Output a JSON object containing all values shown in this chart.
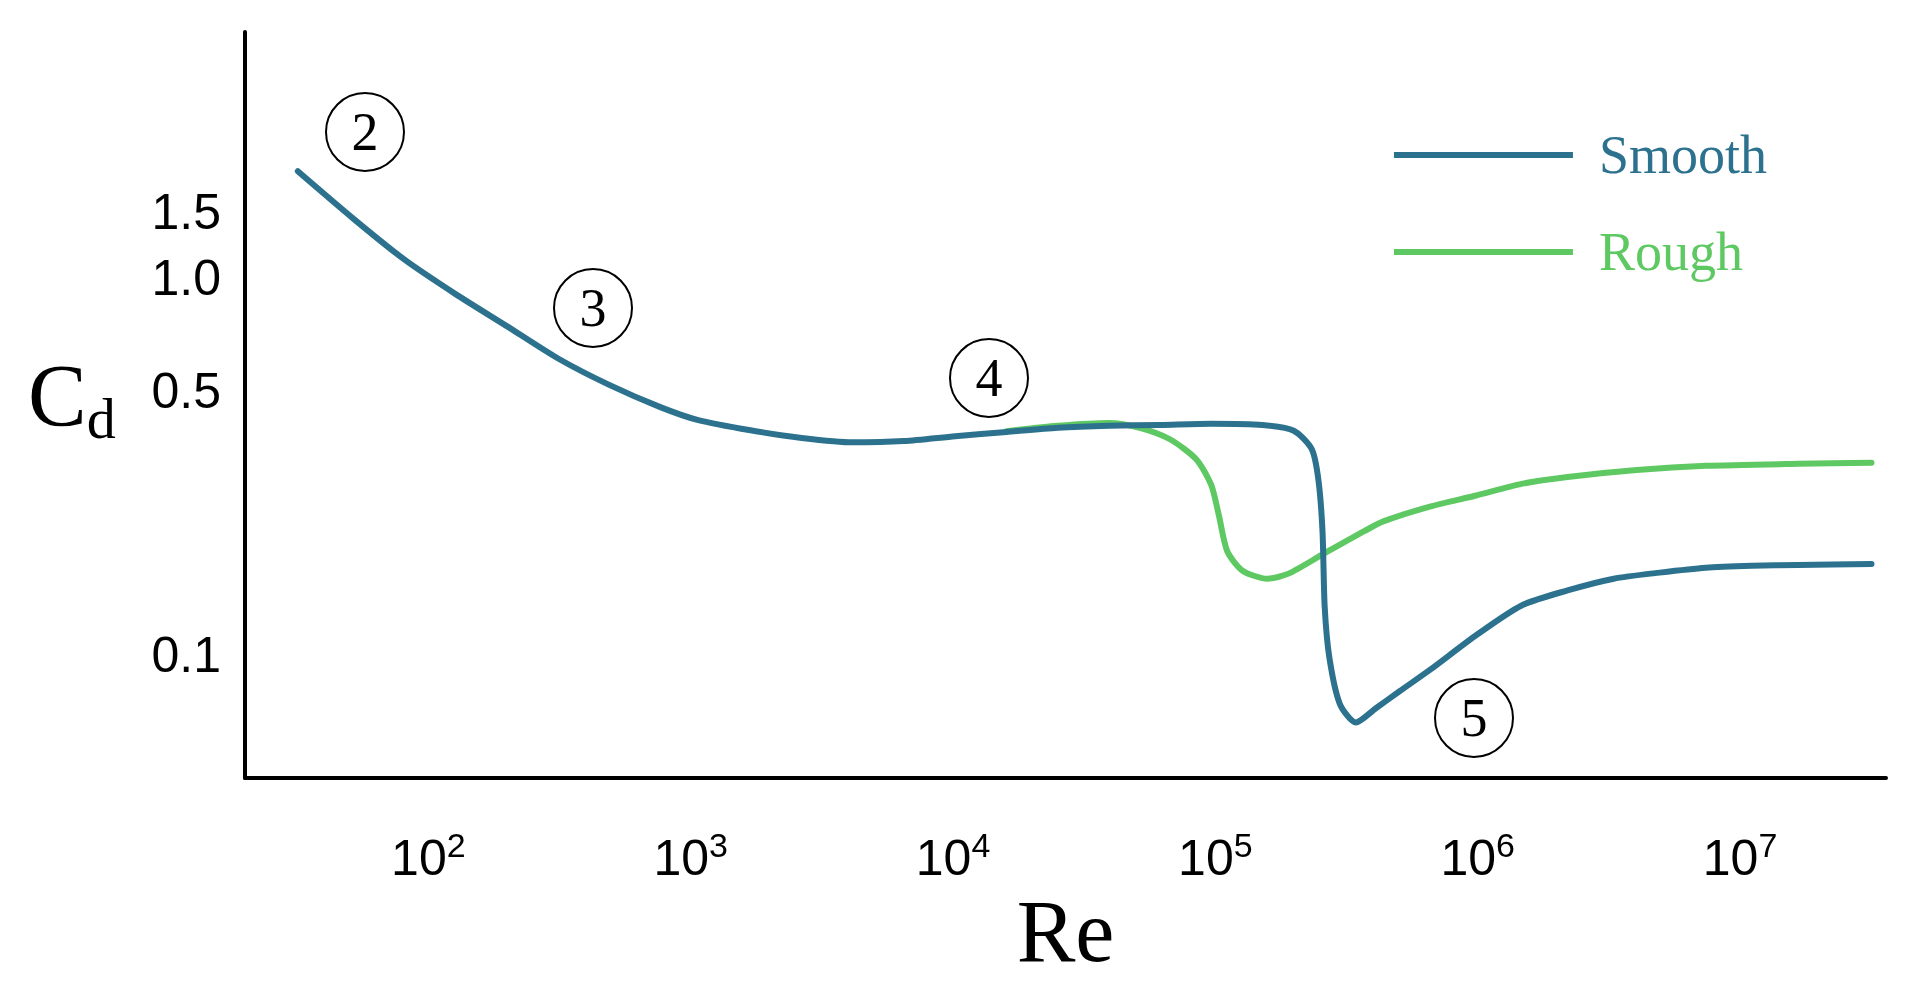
{
  "chart_data": {
    "type": "line",
    "xlabel": "Re",
    "ylabel": "C$_{d}$",
    "log": "xy",
    "grid": false,
    "legend": "top right",
    "line_style": "solid",
    "xlim": [
      20,
      36000000
    ],
    "xticks": [
      {
        "value": 100,
        "label": "10$^{2}$"
      },
      {
        "value": 1000,
        "label": "10$^{3}$"
      },
      {
        "value": 10000,
        "label": "10$^{4}$"
      },
      {
        "value": 100000,
        "label": "10$^{5}$"
      },
      {
        "value": 1000000,
        "label": "10$^{6}$"
      },
      {
        "value": 10000000,
        "label": "10$^{7}$"
      }
    ],
    "ylim": [
      0.047,
      4.5
    ],
    "yticks": [
      0.1,
      0.5,
      {
        "value": 1,
        "label": "1.0"
      },
      1.5
    ],
    "series": [
      {
        "name": "Smooth",
        "color": "#2c728e",
        "x": [
          31.8,
          51.6,
          80.9,
          127,
          199,
          311,
          489,
          766,
          1060,
          1690,
          2650,
          4150,
          6500,
          10200,
          16000,
          25100,
          39300,
          61500,
          96400,
          151000,
          199000,
          233000,
          247000,
          256000,
          261000,
          272000,
          298000,
          343000,
          409000,
          505000,
          657000,
          977000,
          1470000,
          2200000,
          3300000,
          4940000,
          7410000,
          11100000,
          16700000,
          31700000
        ],
        "values": [
          1.92,
          1.44,
          1.12,
          0.906,
          0.745,
          0.612,
          0.52,
          0.454,
          0.42,
          0.394,
          0.376,
          0.366,
          0.369,
          0.38,
          0.39,
          0.4,
          0.405,
          0.407,
          0.41,
          0.407,
          0.393,
          0.351,
          0.291,
          0.213,
          0.134,
          0.098,
          0.074,
          0.066,
          0.072,
          0.08,
          0.091,
          0.112,
          0.135,
          0.148,
          0.159,
          0.165,
          0.17,
          0.172,
          0.173,
          0.174
        ]
      },
      {
        "name": "Rough",
        "color": "#5ec962",
        "x": [
          16000,
          25100,
          39300,
          51500,
          67100,
          84500,
          96400,
          103000,
          111000,
          127000,
          158000,
          190000,
          258000,
          371000,
          439000,
          657000,
          977000,
          1470000,
          2200000,
          4040000,
          7410000,
          16700000,
          31700000
        ],
        "values": [
          0.392,
          0.405,
          0.412,
          0.4,
          0.373,
          0.33,
          0.282,
          0.235,
          0.188,
          0.167,
          0.159,
          0.164,
          0.185,
          0.213,
          0.226,
          0.247,
          0.264,
          0.284,
          0.296,
          0.309,
          0.317,
          0.321,
          0.323
        ]
      }
    ],
    "annotations": [
      "2",
      "3",
      "4",
      "5"
    ]
  }
}
